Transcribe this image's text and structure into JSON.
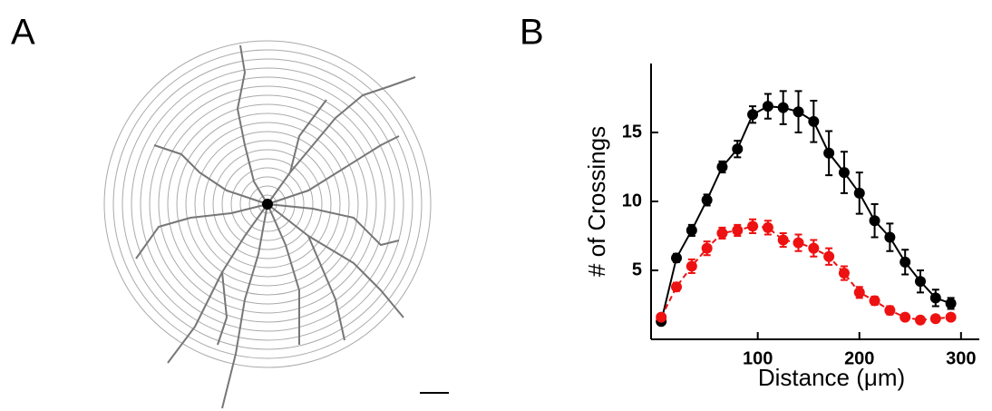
{
  "panels": {
    "a_label": "A",
    "b_label": "B"
  },
  "chart_data": {
    "type": "line",
    "xlabel": "Distance  (μm)",
    "ylabel": "# of Crossings",
    "x": [
      5,
      20,
      35,
      50,
      65,
      80,
      95,
      110,
      125,
      140,
      155,
      170,
      185,
      200,
      215,
      230,
      245,
      260,
      275,
      290
    ],
    "series": [
      {
        "color": "#000000",
        "dashed": false,
        "values": [
          1.3,
          5.9,
          7.9,
          10.1,
          12.5,
          13.8,
          16.3,
          16.9,
          16.8,
          16.5,
          15.8,
          13.5,
          12.1,
          10.6,
          8.6,
          7.4,
          5.6,
          4.2,
          3.0,
          2.6
        ],
        "errors": [
          0.2,
          0.3,
          0.4,
          0.4,
          0.4,
          0.6,
          0.6,
          0.9,
          1.2,
          1.5,
          1.5,
          1.6,
          1.5,
          1.5,
          1.2,
          1.0,
          0.9,
          0.8,
          0.6,
          0.4
        ]
      },
      {
        "color": "#ee1111",
        "dashed": true,
        "values": [
          1.6,
          3.8,
          5.3,
          6.6,
          7.7,
          7.9,
          8.2,
          8.1,
          7.2,
          7.0,
          6.6,
          6.0,
          4.8,
          3.4,
          2.8,
          2.1,
          1.6,
          1.4,
          1.5,
          1.6
        ],
        "errors": [
          0.2,
          0.3,
          0.5,
          0.5,
          0.4,
          0.4,
          0.5,
          0.5,
          0.5,
          0.6,
          0.6,
          0.6,
          0.5,
          0.4,
          0.3,
          0.3,
          0.2,
          0.2,
          0.2,
          0.2
        ]
      }
    ],
    "xlim": [
      -5,
      318
    ],
    "ylim": [
      0,
      20
    ],
    "xticks": [
      100,
      200,
      300
    ],
    "yticks": [
      5,
      10,
      15
    ]
  }
}
